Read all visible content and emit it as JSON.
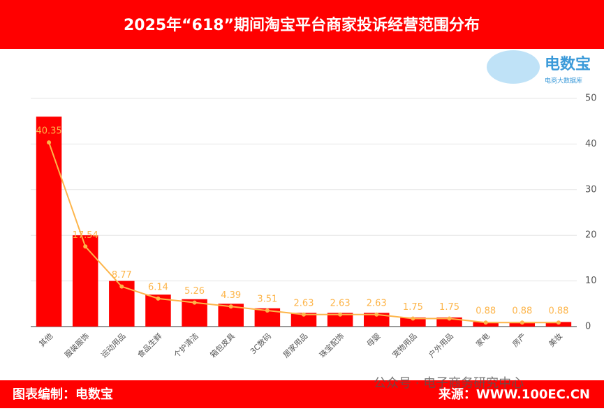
{
  "chart_data": {
    "type": "bar_line",
    "title": "2025年“618”期间淘宝平台商家投诉经营范围分布",
    "categories": [
      "其他",
      "服装服饰",
      "运动用品",
      "食品生鲜",
      "个护清洁",
      "箱包皮具",
      "3C数码",
      "居家用品",
      "珠宝配饰",
      "母婴",
      "宠物用品",
      "户外用品",
      "家电",
      "房产",
      "美妆"
    ],
    "series": [
      {
        "type": "bar",
        "color": "#ff0000",
        "values": [
          46,
          20,
          10,
          7,
          6,
          5,
          4,
          3,
          3,
          3,
          2,
          2,
          1,
          1,
          1
        ]
      },
      {
        "type": "line",
        "color": "#fdb54a",
        "values": [
          40.35,
          17.54,
          8.77,
          6.14,
          5.26,
          4.39,
          3.51,
          2.63,
          2.63,
          2.63,
          1.75,
          1.75,
          0.88,
          0.88,
          0.88
        ]
      }
    ],
    "ylim": [
      0,
      50
    ],
    "yticks": [
      0,
      10,
      20,
      30,
      40,
      50
    ],
    "grid": true,
    "axis_side": "right"
  },
  "logo": {
    "name": "电数宝",
    "tagline": "电商大数据库"
  },
  "credit": "图表编制：电数宝",
  "source": "来源：WWW.100EC.CN",
  "watermark": "公众号 · 电子商务研究中心"
}
